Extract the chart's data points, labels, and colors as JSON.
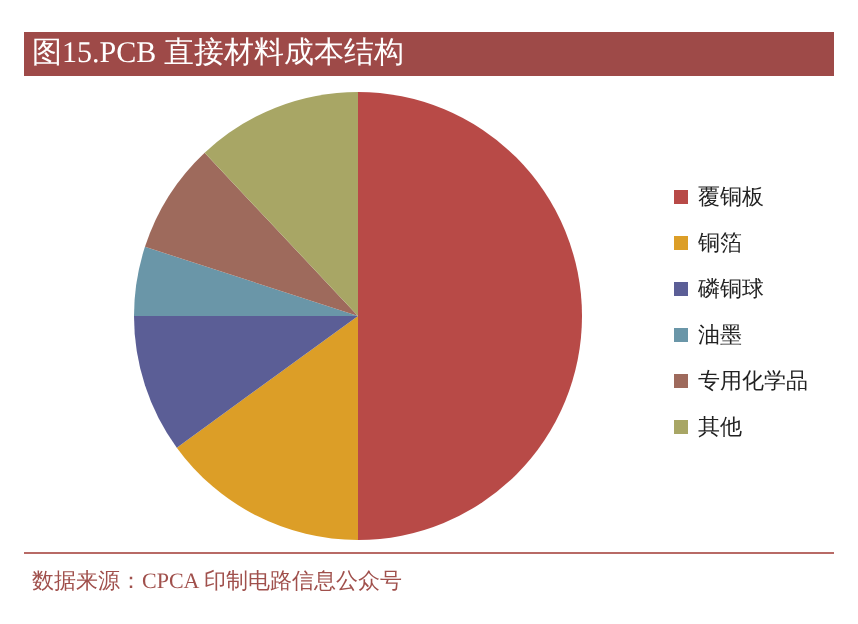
{
  "chart_data": {
    "type": "pie",
    "title": "图15.PCB 直接材料成本结构",
    "categories": [
      "覆铜板",
      "铜箔",
      "磷铜球",
      "油墨",
      "专用化学品",
      "其他"
    ],
    "values": [
      50,
      15,
      10,
      5,
      8,
      12
    ],
    "colors": [
      "#b84a47",
      "#dc9e27",
      "#5b5e96",
      "#6a96a8",
      "#9e6a5c",
      "#a8a665"
    ],
    "legend": "right",
    "annotations": [
      "数据来源：CPCA 印制电路信息公众号"
    ]
  }
}
